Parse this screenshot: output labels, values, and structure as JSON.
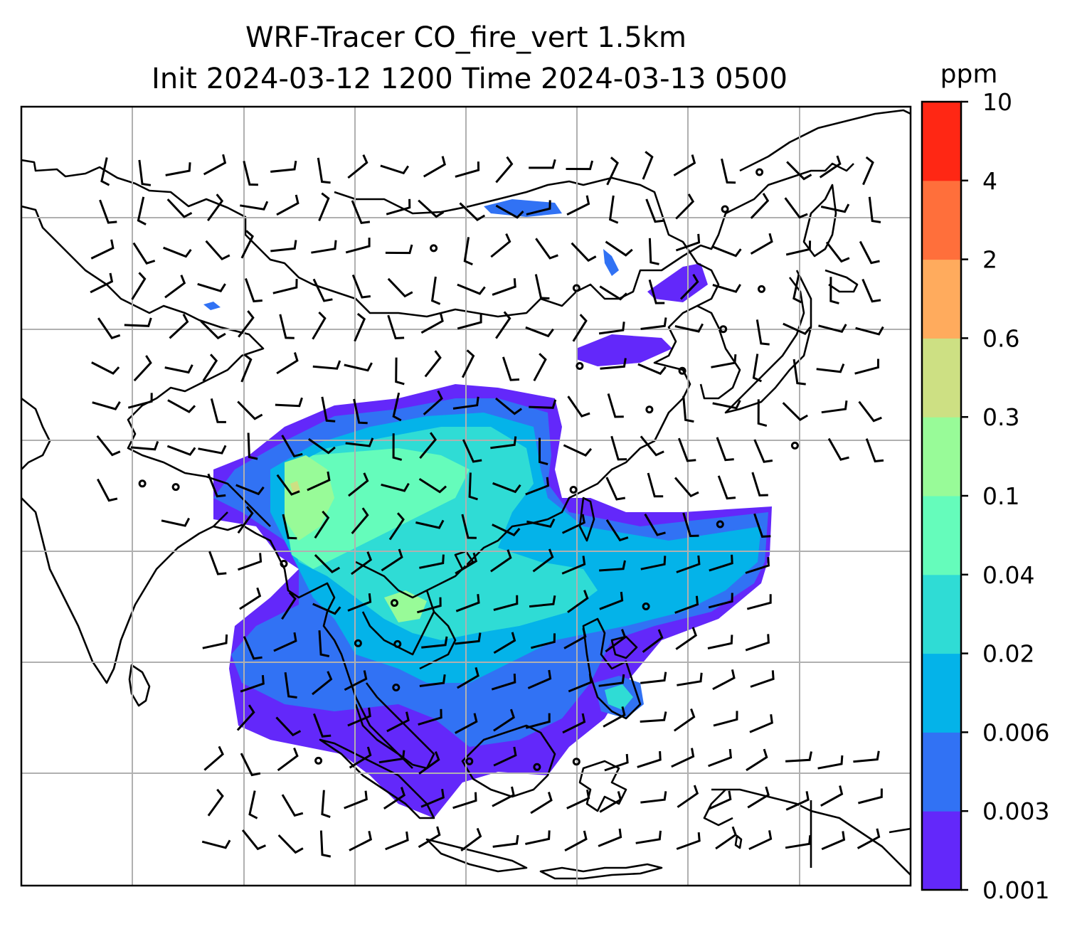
{
  "chart_data": {
    "type": "heatmap",
    "title": [
      "WRF-Tracer CO_fire_vert 1.5km",
      "Init 2024-03-12 1200 Time 2024-03-13 0500"
    ],
    "variable": "CO_fire_vert",
    "level": "1.5km",
    "init_time": "2024-03-12 1200",
    "valid_time": "2024-03-13 0500",
    "colorbar": {
      "unit": "ppm",
      "levels": [
        "0.001",
        "0.003",
        "0.006",
        "0.02",
        "0.04",
        "0.1",
        "0.3",
        "0.6",
        "2",
        "4",
        "10"
      ],
      "colors": [
        "#6328fa",
        "#3172f4",
        "#04b3e9",
        "#2fdcd5",
        "#65fcbb",
        "#98fb98",
        "#cde083",
        "#ffab5d",
        "#ff6f3b",
        "#ff2714"
      ]
    },
    "map": {
      "features": [
        "coastlines",
        "country borders",
        "gridlines"
      ],
      "grid": true,
      "overlay": "wind barbs"
    },
    "plume_levels": {
      "core_mainland_southeast_asia": "0.04-0.3",
      "southern_and_eastern_fringe": "0.001-0.02"
    }
  }
}
